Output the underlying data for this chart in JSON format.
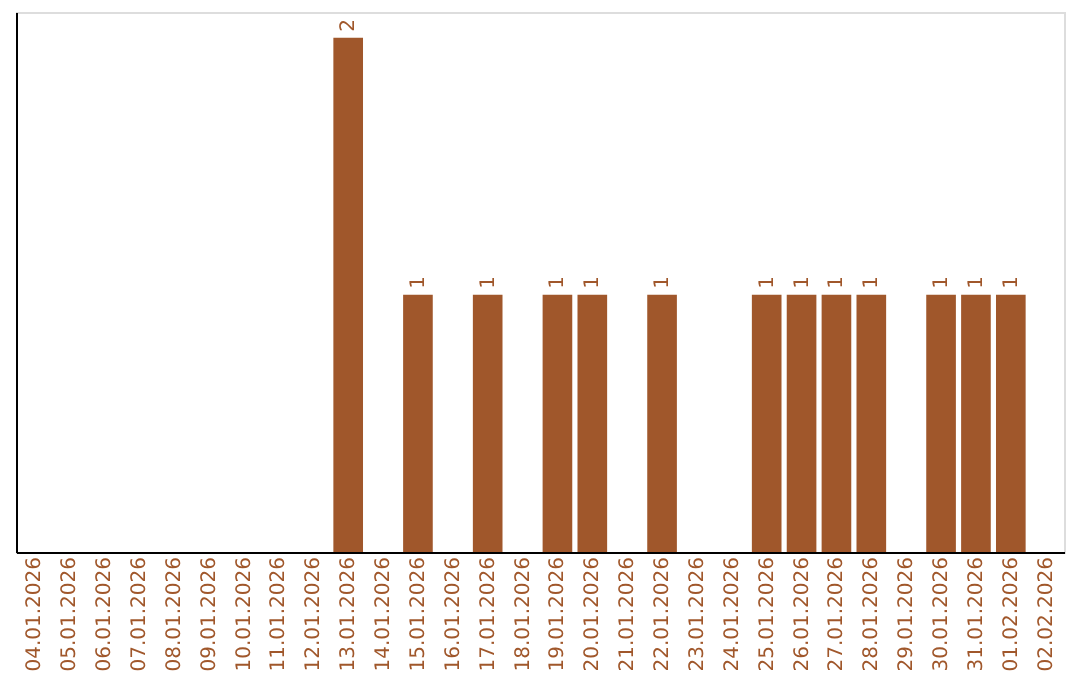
{
  "chart_data": {
    "type": "bar",
    "categories": [
      "04.01.2026",
      "05.01.2026",
      "06.01.2026",
      "07.01.2026",
      "08.01.2026",
      "09.01.2026",
      "10.01.2026",
      "11.01.2026",
      "12.01.2026",
      "13.01.2026",
      "14.01.2026",
      "15.01.2026",
      "16.01.2026",
      "17.01.2026",
      "18.01.2026",
      "19.01.2026",
      "20.01.2026",
      "21.01.2026",
      "22.01.2026",
      "23.01.2026",
      "24.01.2026",
      "25.01.2026",
      "26.01.2026",
      "27.01.2026",
      "28.01.2026",
      "29.01.2026",
      "30.01.2026",
      "31.01.2026",
      "01.02.2026",
      "02.02.2026"
    ],
    "values": [
      0,
      0,
      0,
      0,
      0,
      0,
      0,
      0,
      0,
      2,
      0,
      1,
      0,
      1,
      0,
      1,
      1,
      0,
      1,
      0,
      0,
      1,
      1,
      1,
      1,
      0,
      1,
      1,
      1,
      0
    ],
    "value_labels": [
      null,
      null,
      null,
      null,
      null,
      null,
      null,
      null,
      null,
      "2",
      null,
      "1",
      null,
      "1",
      null,
      "1",
      "1",
      null,
      "1",
      null,
      null,
      "1",
      "1",
      "1",
      "1",
      null,
      "1",
      "1",
      "1",
      null
    ],
    "color": "#a0572b",
    "ylim": [
      0,
      2.1
    ],
    "tick_labels": "x",
    "grid": false
  }
}
